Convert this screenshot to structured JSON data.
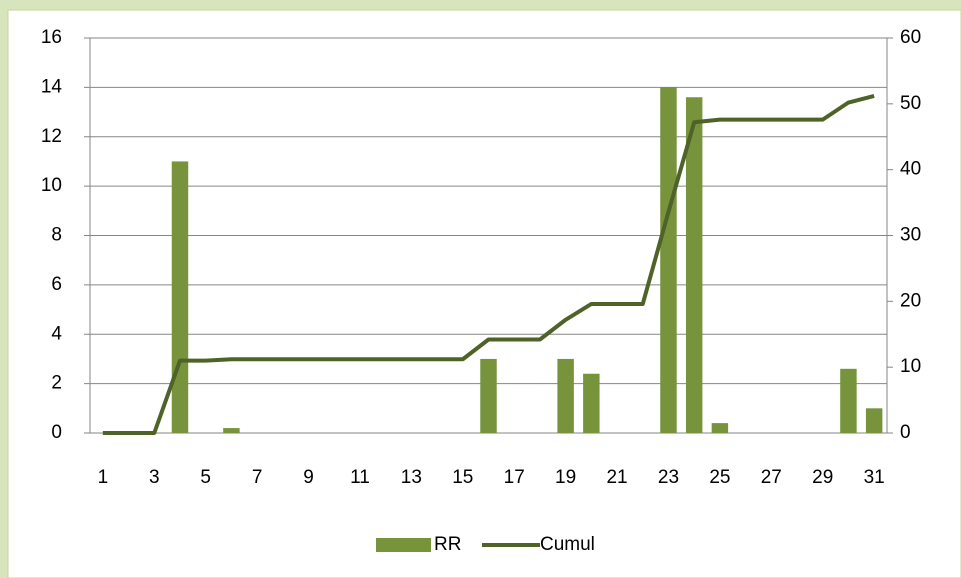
{
  "chart_data": {
    "type": "bar_line",
    "categories": [
      1,
      null,
      3,
      null,
      5,
      null,
      7,
      null,
      9,
      null,
      11,
      null,
      13,
      null,
      15,
      null,
      17,
      null,
      19,
      null,
      21,
      null,
      23,
      null,
      25,
      null,
      27,
      null,
      29,
      null,
      31
    ],
    "series": [
      {
        "name": "RR",
        "type": "bar",
        "color": "#77933c",
        "axis": "y",
        "values": [
          0,
          0,
          0,
          11,
          0,
          0.2,
          0,
          0,
          0,
          0,
          0,
          0,
          0,
          0,
          0,
          3,
          0,
          0,
          3,
          2.4,
          0,
          0,
          14,
          13.6,
          0.4,
          0,
          0,
          0,
          0,
          2.6,
          1
        ]
      },
      {
        "name": "Cumul",
        "type": "line",
        "color": "#4f6228",
        "axis": "y2",
        "values": [
          0,
          0,
          0,
          11,
          11,
          11.2,
          11.2,
          11.2,
          11.2,
          11.2,
          11.2,
          11.2,
          11.2,
          11.2,
          11.2,
          14.2,
          14.2,
          14.2,
          17.2,
          19.6,
          19.6,
          19.6,
          33.6,
          47.2,
          47.6,
          47.6,
          47.6,
          47.6,
          47.6,
          50.2,
          51.2
        ]
      }
    ],
    "ylim": [
      0,
      16
    ],
    "yticks": [
      0,
      2,
      4,
      6,
      8,
      10,
      12,
      14,
      16
    ],
    "y2lim": [
      0,
      60
    ],
    "y2ticks": [
      0,
      10,
      20,
      30,
      40,
      50,
      60
    ],
    "grid": true,
    "legend": "bottom"
  }
}
